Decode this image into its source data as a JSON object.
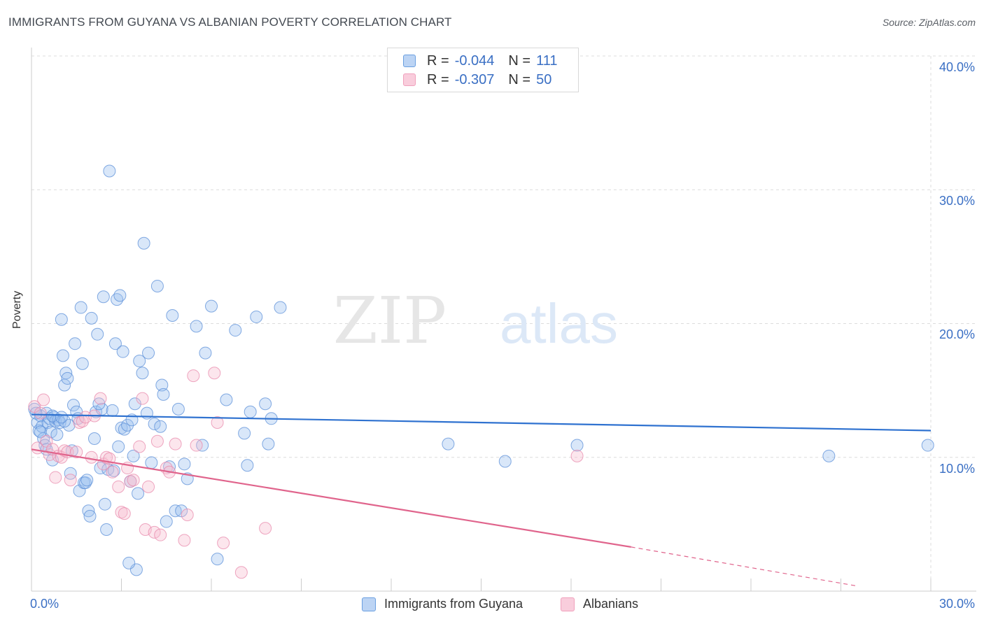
{
  "title": "IMMIGRANTS FROM GUYANA VS ALBANIAN POVERTY CORRELATION CHART",
  "source": "Source: ZipAtlas.com",
  "watermark": {
    "zip": "ZIP",
    "atlas": "atlas"
  },
  "colors": {
    "blue": "#6a9fe0",
    "blue_line": "#2f72d0",
    "pink": "#f0a0bc",
    "pink_line": "#e0648c",
    "axis_text": "#3a6fc4"
  },
  "legend_top": {
    "rows": [
      {
        "r_label": "R =",
        "r_value": "-0.044",
        "n_label": "N =",
        "n_value": "111"
      },
      {
        "r_label": "R =",
        "r_value": "-0.307",
        "n_label": "N =",
        "n_value": "50"
      }
    ]
  },
  "chart_data": {
    "type": "scatter",
    "title": "IMMIGRANTS FROM GUYANA VS ALBANIAN POVERTY CORRELATION CHART",
    "xlabel": "",
    "ylabel": "Poverty",
    "xlim": [
      0,
      30
    ],
    "ylim": [
      0,
      40
    ],
    "x_tick_labels": [
      "0.0%",
      "30.0%"
    ],
    "y_ticks": [
      10,
      20,
      30,
      40
    ],
    "y_tick_labels": [
      "10.0%",
      "20.0%",
      "30.0%",
      "40.0%"
    ],
    "grid": true,
    "legend_position": "bottom",
    "series": [
      {
        "name": "Immigrants from Guyana",
        "color": "#6a9fe0",
        "trend": {
          "x": [
            0,
            30
          ],
          "y": [
            13.2,
            12.0
          ]
        },
        "points": [
          [
            0.1,
            13.6
          ],
          [
            0.2,
            12.6
          ],
          [
            0.25,
            12.0
          ],
          [
            0.3,
            13.1
          ],
          [
            0.35,
            12.3
          ],
          [
            0.4,
            11.4
          ],
          [
            0.45,
            10.9
          ],
          [
            0.5,
            13.3
          ],
          [
            0.55,
            12.6
          ],
          [
            0.6,
            12.9
          ],
          [
            0.65,
            11.9
          ],
          [
            0.7,
            9.8
          ],
          [
            0.75,
            13.0
          ],
          [
            0.8,
            12.7
          ],
          [
            0.85,
            11.7
          ],
          [
            0.9,
            12.8
          ],
          [
            0.95,
            12.6
          ],
          [
            1.0,
            20.3
          ],
          [
            1.05,
            17.6
          ],
          [
            1.1,
            15.4
          ],
          [
            1.15,
            16.3
          ],
          [
            1.2,
            15.9
          ],
          [
            1.25,
            12.4
          ],
          [
            1.3,
            8.8
          ],
          [
            1.35,
            10.5
          ],
          [
            1.4,
            13.9
          ],
          [
            1.45,
            18.5
          ],
          [
            1.5,
            13.4
          ],
          [
            1.6,
            7.5
          ],
          [
            1.65,
            21.2
          ],
          [
            1.7,
            17.0
          ],
          [
            1.75,
            8.1
          ],
          [
            1.8,
            8.1
          ],
          [
            1.9,
            6.0
          ],
          [
            1.95,
            5.6
          ],
          [
            2.0,
            20.4
          ],
          [
            2.1,
            11.4
          ],
          [
            2.15,
            13.4
          ],
          [
            2.2,
            19.2
          ],
          [
            2.3,
            9.2
          ],
          [
            2.35,
            13.6
          ],
          [
            2.4,
            22.0
          ],
          [
            2.45,
            6.5
          ],
          [
            2.5,
            4.6
          ],
          [
            2.55,
            9.1
          ],
          [
            2.6,
            31.4
          ],
          [
            2.7,
            13.5
          ],
          [
            2.8,
            18.5
          ],
          [
            2.85,
            21.8
          ],
          [
            2.9,
            10.8
          ],
          [
            2.95,
            22.1
          ],
          [
            3.0,
            12.2
          ],
          [
            3.05,
            17.9
          ],
          [
            3.1,
            12.1
          ],
          [
            3.2,
            12.4
          ],
          [
            3.3,
            8.2
          ],
          [
            3.35,
            12.8
          ],
          [
            3.4,
            10.1
          ],
          [
            3.45,
            14.0
          ],
          [
            3.5,
            1.6
          ],
          [
            3.55,
            7.3
          ],
          [
            3.6,
            17.2
          ],
          [
            3.7,
            16.3
          ],
          [
            3.75,
            26.0
          ],
          [
            3.85,
            13.3
          ],
          [
            3.9,
            17.8
          ],
          [
            4.0,
            9.6
          ],
          [
            4.1,
            12.5
          ],
          [
            4.2,
            22.8
          ],
          [
            4.3,
            12.3
          ],
          [
            4.35,
            15.4
          ],
          [
            4.4,
            14.7
          ],
          [
            4.5,
            5.2
          ],
          [
            4.6,
            9.3
          ],
          [
            4.7,
            20.6
          ],
          [
            4.8,
            6.0
          ],
          [
            5.0,
            6.0
          ],
          [
            5.1,
            9.5
          ],
          [
            5.2,
            8.4
          ],
          [
            5.5,
            19.8
          ],
          [
            5.7,
            10.9
          ],
          [
            5.8,
            17.8
          ],
          [
            6.0,
            21.3
          ],
          [
            6.2,
            2.4
          ],
          [
            6.5,
            14.3
          ],
          [
            6.8,
            19.5
          ],
          [
            7.1,
            11.8
          ],
          [
            7.2,
            9.4
          ],
          [
            7.3,
            13.4
          ],
          [
            7.5,
            20.5
          ],
          [
            7.8,
            14.0
          ],
          [
            7.9,
            11.0
          ],
          [
            8.0,
            12.9
          ],
          [
            8.3,
            21.2
          ],
          [
            13.9,
            11.0
          ],
          [
            15.8,
            9.7
          ],
          [
            18.2,
            10.9
          ],
          [
            26.6,
            10.1
          ],
          [
            29.9,
            10.9
          ],
          [
            0.15,
            13.3
          ],
          [
            0.5,
            10.6
          ],
          [
            1.1,
            12.7
          ],
          [
            1.85,
            8.3
          ],
          [
            2.75,
            9.0
          ],
          [
            3.25,
            2.1
          ],
          [
            0.7,
            13.1
          ],
          [
            1.55,
            12.9
          ],
          [
            2.25,
            14.0
          ],
          [
            0.3,
            11.9
          ],
          [
            1.0,
            13.0
          ],
          [
            4.9,
            13.6
          ]
        ]
      },
      {
        "name": "Albanians",
        "color": "#f0a0bc",
        "trend": {
          "x": [
            0,
            20
          ],
          "y": [
            10.6,
            3.3
          ]
        },
        "trend_dashed": {
          "x": [
            20,
            27.5
          ],
          "y": [
            3.3,
            0.4
          ]
        },
        "points": [
          [
            0.1,
            13.8
          ],
          [
            0.2,
            10.7
          ],
          [
            0.3,
            13.3
          ],
          [
            0.4,
            14.3
          ],
          [
            0.5,
            11.2
          ],
          [
            0.6,
            10.2
          ],
          [
            0.7,
            10.6
          ],
          [
            0.8,
            8.5
          ],
          [
            0.9,
            10.1
          ],
          [
            1.0,
            10.0
          ],
          [
            1.1,
            10.5
          ],
          [
            1.2,
            10.4
          ],
          [
            1.3,
            8.3
          ],
          [
            1.5,
            10.4
          ],
          [
            1.6,
            12.6
          ],
          [
            1.7,
            12.7
          ],
          [
            1.8,
            13.0
          ],
          [
            2.0,
            10.0
          ],
          [
            2.1,
            13.1
          ],
          [
            2.3,
            14.4
          ],
          [
            2.4,
            9.5
          ],
          [
            2.5,
            10.0
          ],
          [
            2.6,
            9.9
          ],
          [
            2.7,
            8.9
          ],
          [
            2.9,
            7.8
          ],
          [
            3.0,
            5.9
          ],
          [
            3.1,
            5.8
          ],
          [
            3.2,
            9.2
          ],
          [
            3.3,
            8.2
          ],
          [
            3.4,
            8.3
          ],
          [
            3.6,
            10.8
          ],
          [
            3.7,
            14.4
          ],
          [
            3.8,
            4.6
          ],
          [
            3.9,
            7.8
          ],
          [
            4.1,
            4.4
          ],
          [
            4.2,
            11.2
          ],
          [
            4.3,
            4.2
          ],
          [
            4.5,
            9.2
          ],
          [
            4.6,
            8.9
          ],
          [
            4.8,
            11.0
          ],
          [
            5.1,
            3.8
          ],
          [
            5.2,
            5.7
          ],
          [
            5.4,
            16.1
          ],
          [
            5.5,
            10.9
          ],
          [
            6.1,
            16.3
          ],
          [
            6.2,
            12.6
          ],
          [
            6.4,
            3.6
          ],
          [
            7.0,
            1.4
          ],
          [
            7.8,
            4.7
          ],
          [
            18.2,
            10.1
          ]
        ]
      }
    ]
  },
  "legend_bottom": [
    "Immigrants from Guyana",
    "Albanians"
  ]
}
